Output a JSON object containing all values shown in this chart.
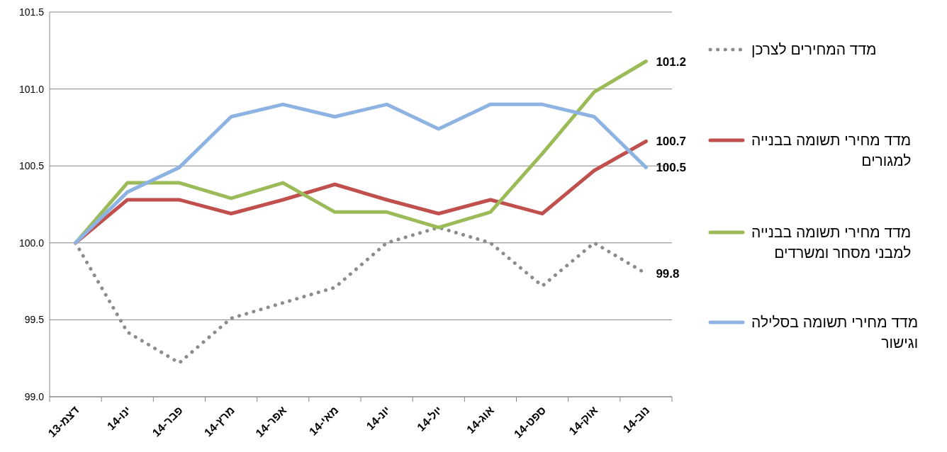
{
  "chart_data": {
    "type": "line",
    "categories": [
      "דצמ-13",
      "ינו-14",
      "פבר-14",
      "מרץ-14",
      "אפר-14",
      "מאי-14",
      "יונ-14",
      "יול-14",
      "אוג-14",
      "ספט-14",
      "אוק-14",
      "נוב-14"
    ],
    "series": [
      {
        "name": "מדד המחירים לצרכן",
        "color": "#8c8c8c",
        "line_style": "dotted",
        "values": [
          100.0,
          99.42,
          99.22,
          99.51,
          99.61,
          99.71,
          100.0,
          100.1,
          100.0,
          99.72,
          100.0,
          99.8
        ],
        "value_labels": [
          null,
          null,
          null,
          null,
          null,
          null,
          null,
          null,
          null,
          null,
          null,
          "99.8"
        ]
      },
      {
        "name": "מדד מחירי תשומה בבנייה למגורים",
        "color": "#c0504d",
        "line_style": "solid",
        "values": [
          100.0,
          100.28,
          100.28,
          100.19,
          100.28,
          100.38,
          100.28,
          100.19,
          100.28,
          100.19,
          100.47,
          100.66
        ],
        "value_labels": [
          null,
          null,
          null,
          null,
          null,
          null,
          null,
          null,
          null,
          null,
          null,
          "100.7"
        ]
      },
      {
        "name": "מדד מחירי תשומה בבנייה למבני מסחר ומשרדים",
        "color": "#9bbb59",
        "line_style": "solid",
        "values": [
          100.0,
          100.39,
          100.39,
          100.29,
          100.39,
          100.2,
          100.2,
          100.1,
          100.2,
          100.58,
          100.98,
          101.18
        ],
        "value_labels": [
          null,
          null,
          null,
          null,
          null,
          null,
          null,
          null,
          null,
          null,
          null,
          "101.2"
        ]
      },
      {
        "name": "מדד מחירי תשומה בסלילה וגישור",
        "color": "#8db3e2",
        "line_style": "solid",
        "values": [
          100.0,
          100.33,
          100.49,
          100.82,
          100.9,
          100.82,
          100.9,
          100.74,
          100.9,
          100.9,
          100.82,
          100.49
        ],
        "value_labels": [
          null,
          null,
          null,
          null,
          null,
          null,
          null,
          null,
          null,
          null,
          null,
          "100.5"
        ]
      }
    ],
    "ylim": [
      99.0,
      101.5
    ],
    "yticks": [
      {
        "value": 99.0,
        "label": "99.0"
      },
      {
        "value": 99.5,
        "label": "99.5"
      },
      {
        "value": 100.0,
        "label": "100.0"
      },
      {
        "value": 100.5,
        "label": "100.5"
      },
      {
        "value": 101.0,
        "label": "101.0"
      },
      {
        "value": 101.5,
        "label": "101.5"
      }
    ],
    "grid": "y",
    "legend": "right",
    "marker": "none"
  }
}
